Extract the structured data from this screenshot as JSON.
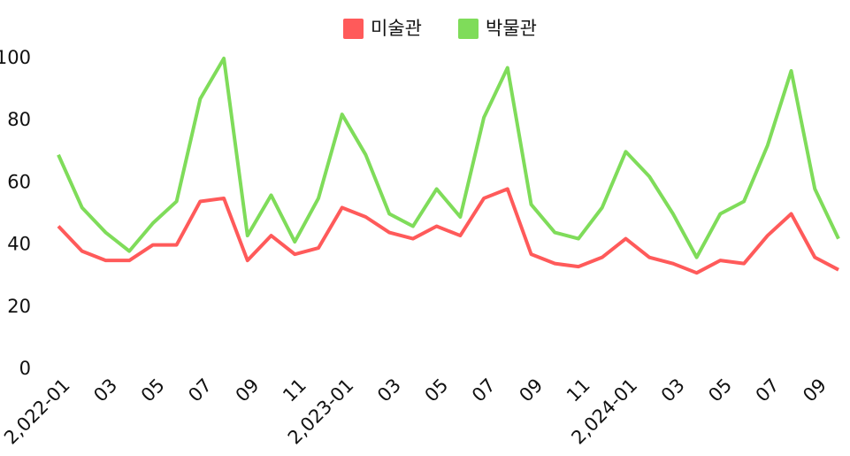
{
  "chart_data": {
    "type": "line",
    "categories": [
      "2,022-01",
      null,
      "03",
      null,
      "05",
      null,
      "07",
      null,
      "09",
      null,
      "11",
      null,
      "2,023-01",
      null,
      "03",
      null,
      "05",
      null,
      "07",
      null,
      "09",
      null,
      "11",
      null,
      "2,024-01",
      null,
      "03",
      null,
      "05",
      null,
      "07",
      null,
      "09",
      null
    ],
    "series": [
      {
        "name": "미술관",
        "color": "#ff5a5a",
        "values": [
          46,
          38,
          35,
          35,
          40,
          40,
          54,
          55,
          35,
          43,
          37,
          39,
          52,
          49,
          44,
          42,
          46,
          43,
          55,
          58,
          37,
          34,
          33,
          36,
          42,
          36,
          34,
          31,
          35,
          34,
          43,
          50,
          36,
          32
        ]
      },
      {
        "name": "박물관",
        "color": "#7fdc5a",
        "values": [
          69,
          52,
          44,
          38,
          47,
          54,
          87,
          100,
          43,
          56,
          41,
          55,
          82,
          69,
          50,
          46,
          58,
          49,
          81,
          97,
          53,
          44,
          42,
          52,
          70,
          62,
          50,
          36,
          50,
          54,
          72,
          96,
          58,
          42
        ]
      }
    ],
    "ylim": [
      0,
      100
    ],
    "yticks": [
      0,
      20,
      40,
      60,
      80,
      100
    ],
    "grid": false,
    "legend": "top"
  }
}
